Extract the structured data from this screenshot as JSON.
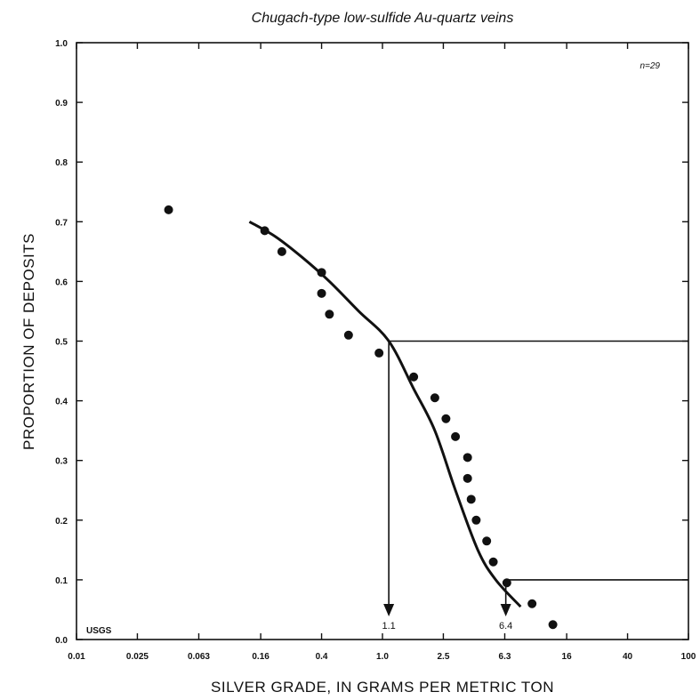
{
  "chart_data": {
    "type": "scatter",
    "title": "Chugach-type low-sulfide Au-quartz veins",
    "xlabel": "SILVER GRADE,  IN GRAMS PER METRIC TON",
    "ylabel": "PROPORTION OF DEPOSITS",
    "x_scale": "log",
    "xlim": [
      0.01,
      100
    ],
    "ylim": [
      0.0,
      1.0
    ],
    "x_ticks": [
      {
        "value": 0.01,
        "label": "0.01"
      },
      {
        "value": 0.025,
        "label": "0.025"
      },
      {
        "value": 0.063,
        "label": "0.063"
      },
      {
        "value": 0.16,
        "label": "0.16"
      },
      {
        "value": 0.4,
        "label": "0.4"
      },
      {
        "value": 1.0,
        "label": "1.0"
      },
      {
        "value": 2.5,
        "label": "2.5"
      },
      {
        "value": 6.3,
        "label": "6.3"
      },
      {
        "value": 16,
        "label": "16"
      },
      {
        "value": 40,
        "label": "40"
      },
      {
        "value": 100,
        "label": "100"
      }
    ],
    "y_ticks": [
      {
        "value": 0.0,
        "label": "0.0"
      },
      {
        "value": 0.1,
        "label": "0.1"
      },
      {
        "value": 0.2,
        "label": "0.2"
      },
      {
        "value": 0.3,
        "label": "0.3"
      },
      {
        "value": 0.4,
        "label": "0.4"
      },
      {
        "value": 0.5,
        "label": "0.5"
      },
      {
        "value": 0.6,
        "label": "0.6"
      },
      {
        "value": 0.7,
        "label": "0.7"
      },
      {
        "value": 0.8,
        "label": "0.8"
      },
      {
        "value": 0.9,
        "label": "0.9"
      },
      {
        "value": 1.0,
        "label": "1.0"
      }
    ],
    "grid": false,
    "points": [
      {
        "x": 0.04,
        "y": 0.72
      },
      {
        "x": 0.17,
        "y": 0.685
      },
      {
        "x": 0.22,
        "y": 0.65
      },
      {
        "x": 0.4,
        "y": 0.615
      },
      {
        "x": 0.4,
        "y": 0.58
      },
      {
        "x": 0.45,
        "y": 0.545
      },
      {
        "x": 0.6,
        "y": 0.51
      },
      {
        "x": 0.95,
        "y": 0.48
      },
      {
        "x": 1.6,
        "y": 0.44
      },
      {
        "x": 2.2,
        "y": 0.405
      },
      {
        "x": 2.6,
        "y": 0.37
      },
      {
        "x": 3.0,
        "y": 0.34
      },
      {
        "x": 3.6,
        "y": 0.305
      },
      {
        "x": 3.6,
        "y": 0.27
      },
      {
        "x": 3.8,
        "y": 0.235
      },
      {
        "x": 4.1,
        "y": 0.2
      },
      {
        "x": 4.8,
        "y": 0.165
      },
      {
        "x": 5.3,
        "y": 0.13
      },
      {
        "x": 6.5,
        "y": 0.095
      },
      {
        "x": 9.5,
        "y": 0.06
      },
      {
        "x": 13.0,
        "y": 0.025
      }
    ],
    "fitted_curve": [
      {
        "x": 0.135,
        "y": 0.7
      },
      {
        "x": 0.2,
        "y": 0.675
      },
      {
        "x": 0.3,
        "y": 0.64
      },
      {
        "x": 0.45,
        "y": 0.6
      },
      {
        "x": 0.7,
        "y": 0.55
      },
      {
        "x": 1.1,
        "y": 0.5
      },
      {
        "x": 1.6,
        "y": 0.42
      },
      {
        "x": 2.2,
        "y": 0.35
      },
      {
        "x": 3.0,
        "y": 0.25
      },
      {
        "x": 4.2,
        "y": 0.15
      },
      {
        "x": 5.5,
        "y": 0.1
      },
      {
        "x": 8.0,
        "y": 0.055
      }
    ],
    "reference_lines": {
      "median": {
        "x": 1.1,
        "y": 0.5,
        "label": "1.1"
      },
      "p90": {
        "x": 6.4,
        "y": 0.1,
        "label": "6.4"
      }
    },
    "annotations": {
      "sample_size": "n=29",
      "source": "USGS"
    }
  }
}
